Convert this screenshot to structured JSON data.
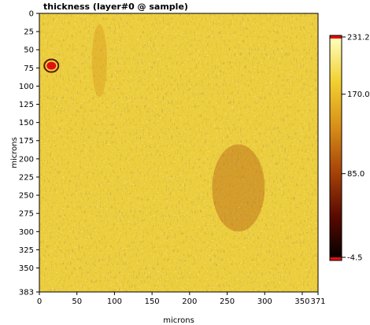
{
  "chart_data": {
    "type": "heatmap",
    "title": "thickness (layer#0 @ sample)",
    "xlabel": "microns",
    "ylabel": "microns",
    "xlim": [
      0,
      371
    ],
    "ylim": [
      0,
      383
    ],
    "x_ticks": [
      "0",
      "50",
      "100",
      "150",
      "200",
      "250",
      "300",
      "350",
      "371"
    ],
    "x_tick_values": [
      0,
      50,
      100,
      150,
      200,
      250,
      300,
      350,
      371
    ],
    "y_ticks": [
      "0",
      "25",
      "50",
      "75",
      "100",
      "125",
      "150",
      "175",
      "200",
      "225",
      "250",
      "275",
      "300",
      "325",
      "350",
      "383"
    ],
    "y_tick_values": [
      0,
      25,
      50,
      75,
      100,
      125,
      150,
      175,
      200,
      225,
      250,
      275,
      300,
      325,
      350,
      383
    ],
    "y_axis_direction": "top-down",
    "colorbar": {
      "max_label": "231.2",
      "min_label": "-4.5",
      "tick_labels": [
        "170.0",
        "85.0"
      ],
      "tick_values": [
        170.0,
        85.0
      ],
      "min": -4.5,
      "max": 231.2,
      "colors": [
        "#000000",
        "#5a0a00",
        "#a84408",
        "#d89018",
        "#f2d030",
        "#ffffc0"
      ],
      "out_of_range_color": "#e01010"
    },
    "dominant_value_range": [
      155,
      200
    ],
    "features": [
      {
        "label": "red saturated spot",
        "x": 16,
        "y": 72,
        "value": "above max"
      },
      {
        "label": "dark vertical streak",
        "x_range": [
          70,
          90
        ],
        "y_range": [
          15,
          115
        ],
        "value_range": [
          100,
          140
        ]
      },
      {
        "label": "dark diagonal band",
        "x_range": [
          230,
          300
        ],
        "y_range": [
          180,
          300
        ],
        "value_range": [
          90,
          130
        ]
      }
    ],
    "grid": false
  }
}
